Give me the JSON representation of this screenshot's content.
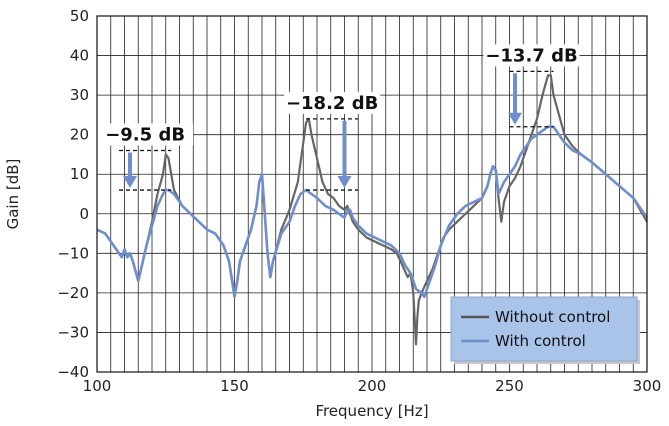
{
  "chart_data": {
    "type": "line",
    "title": "",
    "xlabel": "Frequency [Hz]",
    "ylabel": "Gain [dB]",
    "xlim": [
      100,
      300
    ],
    "ylim": [
      -40,
      50
    ],
    "x_ticks": [
      100,
      150,
      200,
      250,
      300
    ],
    "x_tick_labels": [
      "100",
      "150",
      "200",
      "250",
      "300"
    ],
    "y_ticks": [
      -40,
      -30,
      -20,
      -10,
      0,
      10,
      20,
      30,
      40,
      50
    ],
    "y_tick_labels": [
      "−40",
      "−30",
      "−20",
      "−10",
      "0",
      "10",
      "20",
      "30",
      "40",
      "50"
    ],
    "grid": true,
    "x_grid_step": 5,
    "legend": {
      "placement": "bottom-right"
    },
    "series": [
      {
        "name": "Without control",
        "color": "#666666",
        "points": [
          [
            100,
            -4
          ],
          [
            103,
            -5
          ],
          [
            106,
            -8
          ],
          [
            108,
            -10
          ],
          [
            109,
            -11
          ],
          [
            110,
            -9
          ],
          [
            111,
            -11
          ],
          [
            112,
            -10
          ],
          [
            113,
            -12
          ],
          [
            115,
            -17
          ],
          [
            116,
            -14
          ],
          [
            118,
            -8
          ],
          [
            120,
            -2
          ],
          [
            122,
            5
          ],
          [
            124,
            10
          ],
          [
            125,
            15
          ],
          [
            126,
            14
          ],
          [
            128,
            6
          ],
          [
            131,
            2
          ],
          [
            134,
            0
          ],
          [
            137,
            -2
          ],
          [
            140,
            -4
          ],
          [
            143,
            -5
          ],
          [
            146,
            -8
          ],
          [
            148,
            -12
          ],
          [
            150,
            -20
          ],
          [
            151,
            -17
          ],
          [
            152,
            -12
          ],
          [
            154,
            -8
          ],
          [
            156,
            -4
          ],
          [
            158,
            2
          ],
          [
            159,
            8
          ],
          [
            160,
            10
          ],
          [
            161,
            0
          ],
          [
            162,
            -10
          ],
          [
            163,
            -16
          ],
          [
            164,
            -12
          ],
          [
            167,
            -4
          ],
          [
            170,
            1
          ],
          [
            173,
            8
          ],
          [
            175,
            18
          ],
          [
            176,
            23
          ],
          [
            177,
            24
          ],
          [
            178,
            20
          ],
          [
            180,
            14
          ],
          [
            182,
            8
          ],
          [
            184,
            5
          ],
          [
            186,
            4
          ],
          [
            188,
            2
          ],
          [
            190,
            1
          ],
          [
            191,
            2
          ],
          [
            192,
            0
          ],
          [
            193,
            -2
          ],
          [
            195,
            -4
          ],
          [
            198,
            -6
          ],
          [
            201,
            -7
          ],
          [
            204,
            -8
          ],
          [
            207,
            -9
          ],
          [
            209,
            -10
          ],
          [
            211,
            -13
          ],
          [
            213,
            -16
          ],
          [
            214,
            -15
          ],
          [
            215,
            -20
          ],
          [
            216,
            -33
          ],
          [
            216.5,
            -26
          ],
          [
            217,
            -22
          ],
          [
            218,
            -20
          ],
          [
            220,
            -17
          ],
          [
            222,
            -14
          ],
          [
            224,
            -10
          ],
          [
            226,
            -6
          ],
          [
            228,
            -4
          ],
          [
            231,
            -2
          ],
          [
            234,
            0
          ],
          [
            237,
            2
          ],
          [
            240,
            4
          ],
          [
            242,
            7
          ],
          [
            243,
            10
          ],
          [
            244,
            12
          ],
          [
            245,
            11
          ],
          [
            246,
            4
          ],
          [
            247,
            -2
          ],
          [
            248,
            3
          ],
          [
            250,
            7
          ],
          [
            252,
            9
          ],
          [
            254,
            12
          ],
          [
            256,
            16
          ],
          [
            258,
            20
          ],
          [
            260,
            24
          ],
          [
            262,
            30
          ],
          [
            264,
            35
          ],
          [
            265,
            35
          ],
          [
            266,
            30
          ],
          [
            268,
            25
          ],
          [
            270,
            20
          ],
          [
            273,
            17
          ],
          [
            276,
            15
          ],
          [
            280,
            13
          ],
          [
            285,
            10
          ],
          [
            290,
            7
          ],
          [
            295,
            4
          ],
          [
            300,
            -2
          ]
        ]
      },
      {
        "name": "With control",
        "color": "#6f8fcc",
        "points": [
          [
            100,
            -4
          ],
          [
            103,
            -5
          ],
          [
            106,
            -8
          ],
          [
            108,
            -10
          ],
          [
            109,
            -11
          ],
          [
            110,
            -9
          ],
          [
            111,
            -11
          ],
          [
            112,
            -10
          ],
          [
            113,
            -12
          ],
          [
            115,
            -17
          ],
          [
            116,
            -14
          ],
          [
            118,
            -8
          ],
          [
            120,
            -3
          ],
          [
            122,
            2
          ],
          [
            124,
            5
          ],
          [
            125,
            6
          ],
          [
            126,
            6
          ],
          [
            128,
            5
          ],
          [
            131,
            2
          ],
          [
            134,
            0
          ],
          [
            137,
            -2
          ],
          [
            140,
            -4
          ],
          [
            143,
            -5
          ],
          [
            146,
            -8
          ],
          [
            148,
            -12
          ],
          [
            150,
            -21
          ],
          [
            151,
            -17
          ],
          [
            152,
            -12
          ],
          [
            154,
            -8
          ],
          [
            156,
            -4
          ],
          [
            158,
            2
          ],
          [
            159,
            8
          ],
          [
            160,
            10
          ],
          [
            161,
            0
          ],
          [
            162,
            -10
          ],
          [
            163,
            -16
          ],
          [
            164,
            -12
          ],
          [
            167,
            -5
          ],
          [
            170,
            -2
          ],
          [
            172,
            2
          ],
          [
            174,
            5
          ],
          [
            176,
            6
          ],
          [
            178,
            5
          ],
          [
            180,
            4
          ],
          [
            183,
            2
          ],
          [
            186,
            1
          ],
          [
            188,
            0
          ],
          [
            190,
            -1
          ],
          [
            191,
            1
          ],
          [
            192,
            1
          ],
          [
            193,
            -1
          ],
          [
            195,
            -3
          ],
          [
            198,
            -5
          ],
          [
            201,
            -6
          ],
          [
            204,
            -7
          ],
          [
            207,
            -8
          ],
          [
            210,
            -10
          ],
          [
            212,
            -13
          ],
          [
            214,
            -15
          ],
          [
            216,
            -19
          ],
          [
            218,
            -20
          ],
          [
            219,
            -21
          ],
          [
            221,
            -17
          ],
          [
            223,
            -13
          ],
          [
            225,
            -8
          ],
          [
            228,
            -3
          ],
          [
            231,
            0
          ],
          [
            234,
            2
          ],
          [
            237,
            3
          ],
          [
            240,
            4
          ],
          [
            242,
            7
          ],
          [
            243,
            10
          ],
          [
            244,
            12
          ],
          [
            245,
            11
          ],
          [
            246,
            5
          ],
          [
            248,
            8
          ],
          [
            250,
            10
          ],
          [
            252,
            12
          ],
          [
            254,
            15
          ],
          [
            256,
            17
          ],
          [
            258,
            19
          ],
          [
            260,
            20
          ],
          [
            262,
            21
          ],
          [
            264,
            22
          ],
          [
            266,
            22
          ],
          [
            268,
            20
          ],
          [
            270,
            18
          ],
          [
            273,
            16
          ],
          [
            276,
            15
          ],
          [
            280,
            13
          ],
          [
            285,
            10
          ],
          [
            290,
            7
          ],
          [
            295,
            4
          ],
          [
            300,
            -1
          ]
        ]
      }
    ],
    "annotations": [
      {
        "label": "−9.5 dB",
        "x_range": [
          108,
          127
        ],
        "from_y": 16,
        "to_y": 6,
        "arrow_x": 112
      },
      {
        "label": "−18.2 dB",
        "x_range": [
          176,
          195
        ],
        "from_y": 24,
        "to_y": 6,
        "arrow_x": 190
      },
      {
        "label": "−13.7 dB",
        "x_range": [
          250,
          266
        ],
        "from_y": 36,
        "to_y": 22,
        "arrow_x": 252
      }
    ]
  }
}
